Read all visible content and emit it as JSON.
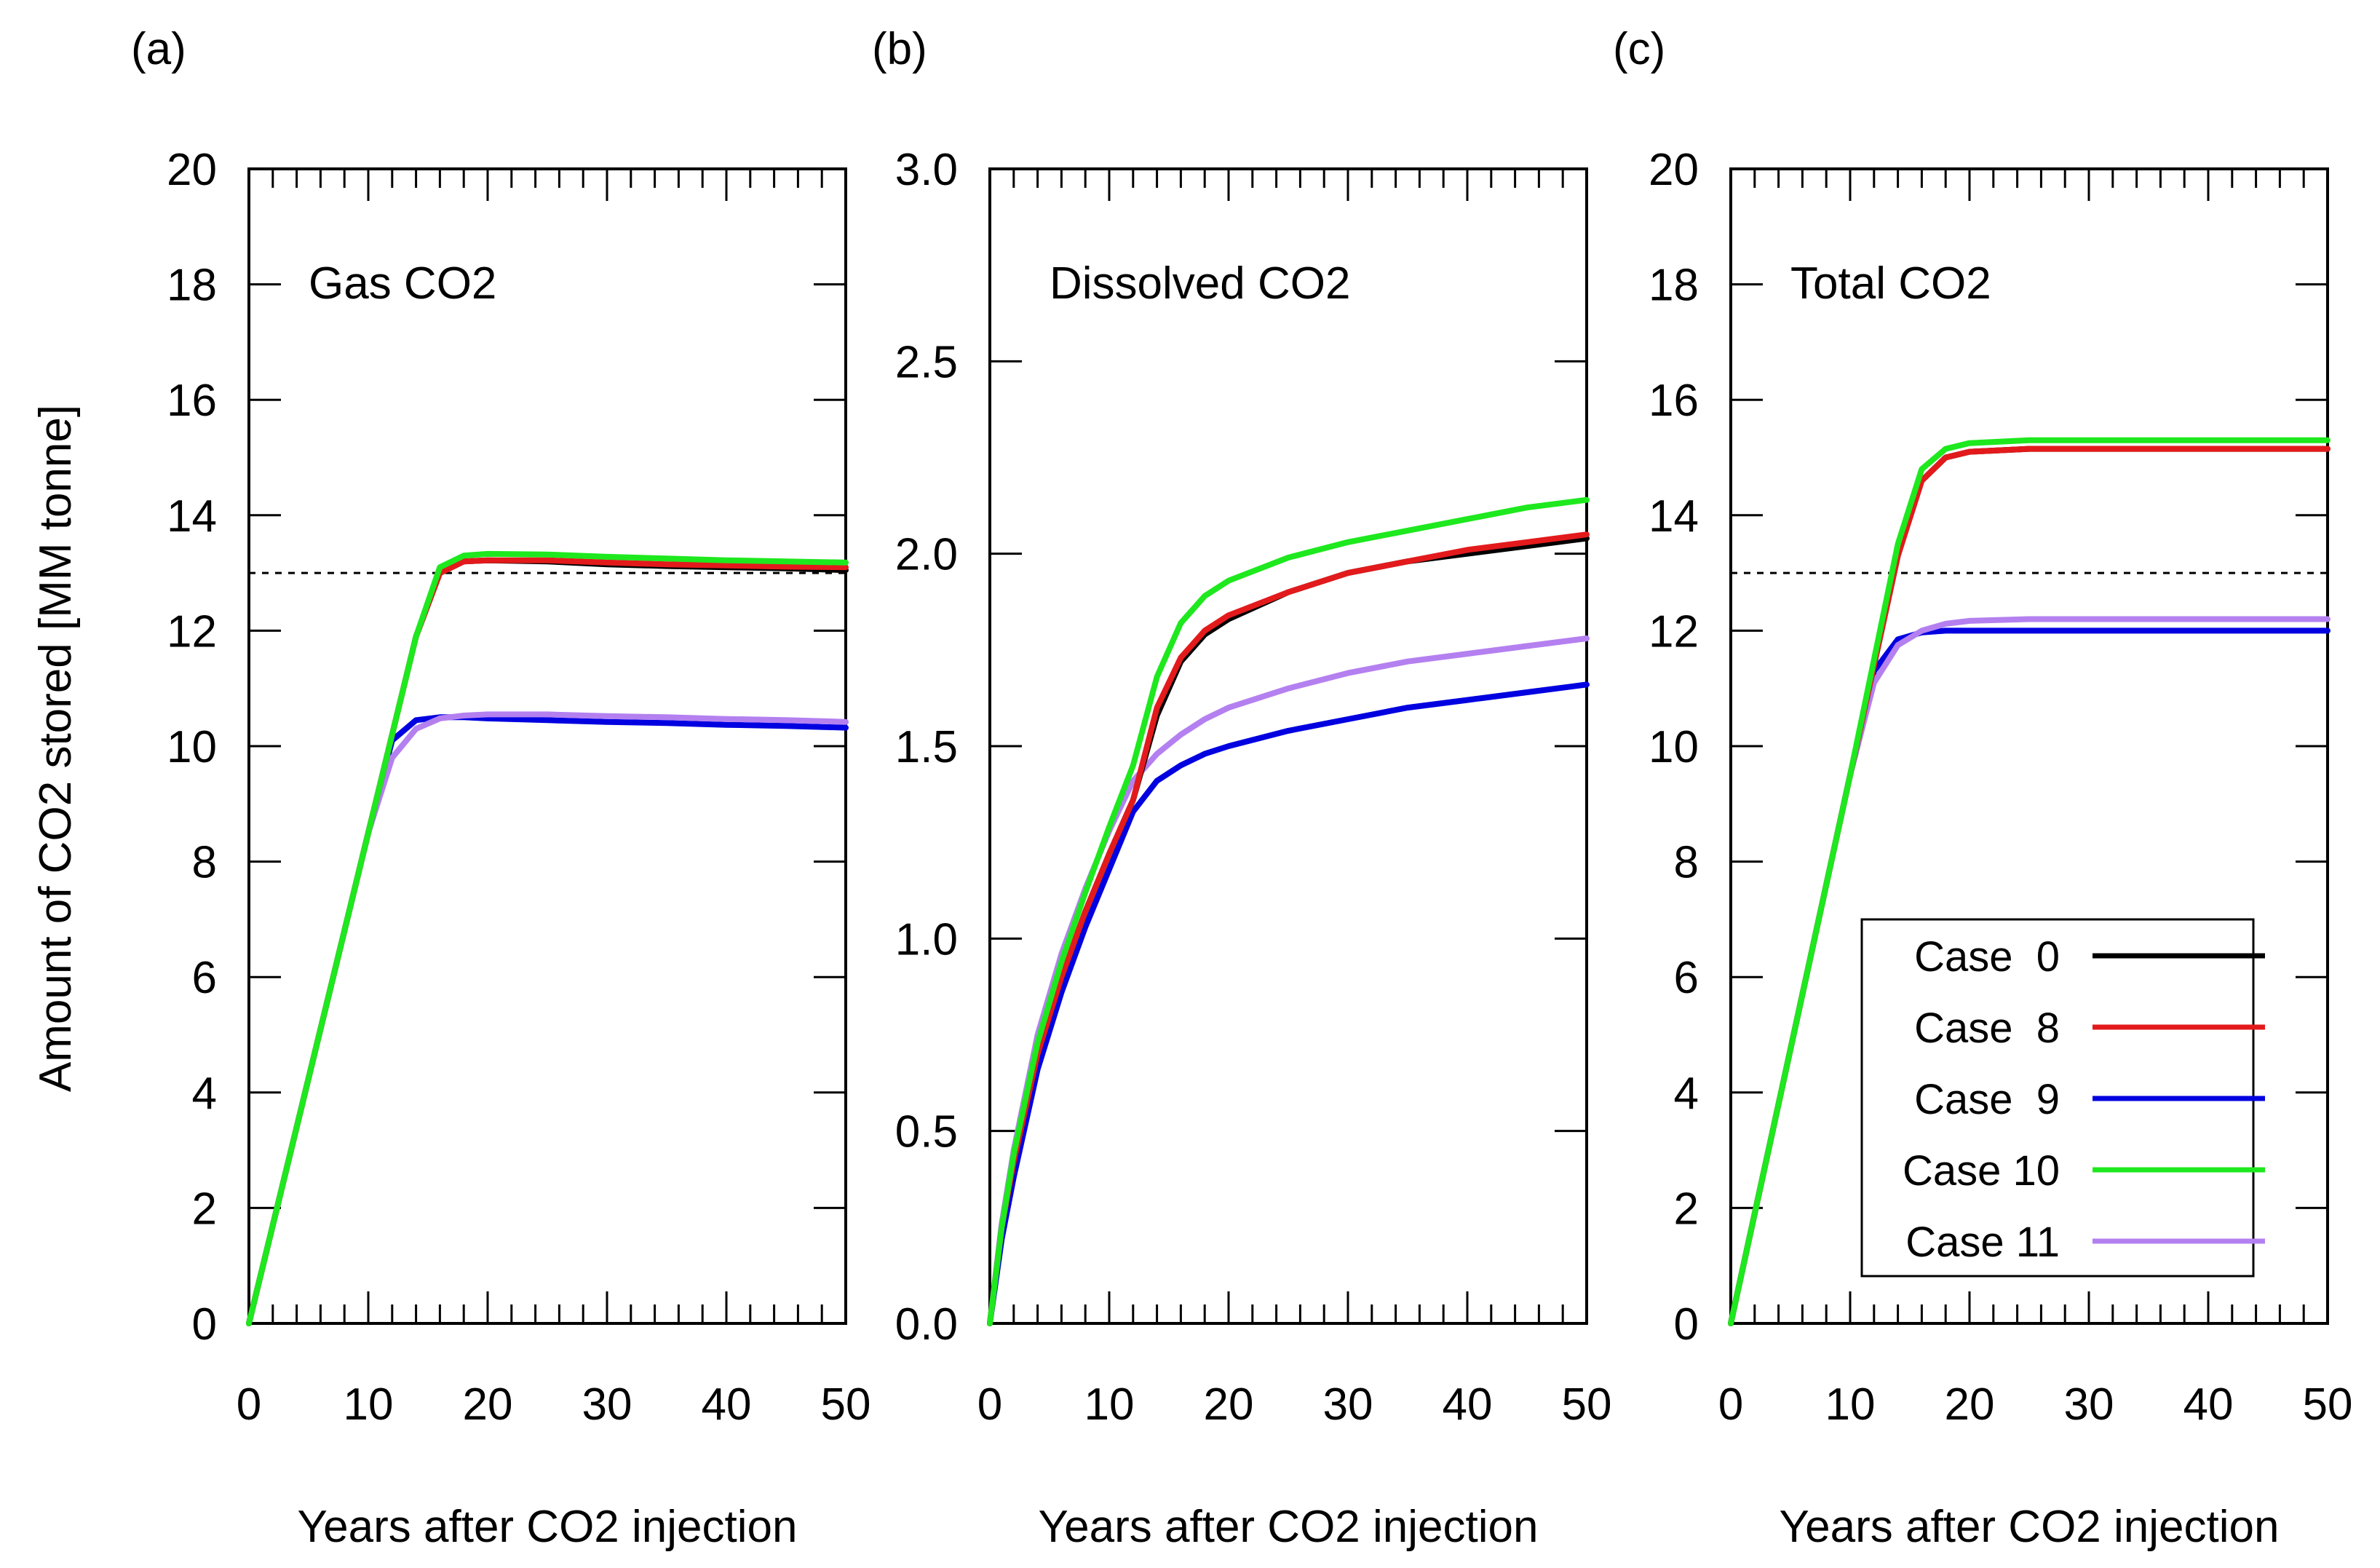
{
  "figure": {
    "ylabel": "Amount of CO2 stored [MM tonne]",
    "xlabel": "Years after CO2 injection",
    "reference_line": 13.0
  },
  "series_styles": [
    {
      "name": "Case  0",
      "color": "#000000"
    },
    {
      "name": "Case  8",
      "color": "#e31a1c"
    },
    {
      "name": "Case  9",
      "color": "#0000e0"
    },
    {
      "name": "Case 10",
      "color": "#1ee81e"
    },
    {
      "name": "Case 11",
      "color": "#b480f0"
    }
  ],
  "chart_data": [
    {
      "type": "line",
      "panel": "(a)",
      "title": "Gas CO2",
      "xlabel": "Years after CO2 injection",
      "xlim": [
        0,
        50
      ],
      "ylim": [
        0,
        20
      ],
      "xticks": [
        "0",
        "10",
        "20",
        "30",
        "40",
        "50"
      ],
      "yticks": [
        "0",
        "2",
        "4",
        "6",
        "8",
        "10",
        "12",
        "14",
        "16",
        "18",
        "20"
      ],
      "hline": 13.0,
      "x": [
        0,
        2,
        4,
        6,
        8,
        10,
        12,
        14,
        16,
        18,
        20,
        25,
        30,
        35,
        40,
        45,
        50
      ],
      "series": [
        {
          "name": "Case  0",
          "values": [
            0,
            1.7,
            3.4,
            5.1,
            6.8,
            8.5,
            10.2,
            11.9,
            13.0,
            13.2,
            13.22,
            13.2,
            13.15,
            13.12,
            13.1,
            13.08,
            13.05
          ]
        },
        {
          "name": "Case  8",
          "values": [
            0,
            1.7,
            3.4,
            5.1,
            6.8,
            8.5,
            10.2,
            11.9,
            13.0,
            13.2,
            13.22,
            13.22,
            13.18,
            13.15,
            13.13,
            13.11,
            13.1
          ]
        },
        {
          "name": "Case  9",
          "values": [
            0,
            1.7,
            3.4,
            5.1,
            6.8,
            8.5,
            10.1,
            10.45,
            10.5,
            10.5,
            10.48,
            10.45,
            10.42,
            10.4,
            10.37,
            10.35,
            10.32
          ]
        },
        {
          "name": "Case 10",
          "values": [
            0,
            1.7,
            3.4,
            5.1,
            6.8,
            8.5,
            10.2,
            11.9,
            13.1,
            13.3,
            13.33,
            13.32,
            13.28,
            13.25,
            13.22,
            13.2,
            13.18
          ]
        },
        {
          "name": "Case 11",
          "values": [
            0,
            1.7,
            3.4,
            5.1,
            6.8,
            8.5,
            9.8,
            10.3,
            10.48,
            10.53,
            10.55,
            10.55,
            10.52,
            10.5,
            10.47,
            10.45,
            10.42
          ]
        }
      ]
    },
    {
      "type": "line",
      "panel": "(b)",
      "title": "Dissolved CO2",
      "xlabel": "Years after CO2 injection",
      "xlim": [
        0,
        50
      ],
      "ylim": [
        0,
        3
      ],
      "xticks": [
        "0",
        "10",
        "20",
        "30",
        "40",
        "50"
      ],
      "yticks": [
        "0.0",
        "0.5",
        "1.0",
        "1.5",
        "2.0",
        "2.5",
        "3.0"
      ],
      "x": [
        0,
        1,
        2,
        4,
        6,
        8,
        10,
        12,
        14,
        16,
        18,
        20,
        25,
        30,
        35,
        40,
        45,
        50
      ],
      "series": [
        {
          "name": "Case  0",
          "values": [
            0,
            0.25,
            0.42,
            0.7,
            0.9,
            1.07,
            1.22,
            1.36,
            1.58,
            1.72,
            1.79,
            1.83,
            1.9,
            1.95,
            1.98,
            2.0,
            2.02,
            2.04
          ]
        },
        {
          "name": "Case  8",
          "values": [
            0,
            0.25,
            0.42,
            0.7,
            0.9,
            1.07,
            1.22,
            1.36,
            1.6,
            1.73,
            1.8,
            1.84,
            1.9,
            1.95,
            1.98,
            2.01,
            2.03,
            2.05
          ]
        },
        {
          "name": "Case  9",
          "values": [
            0,
            0.22,
            0.38,
            0.66,
            0.86,
            1.03,
            1.18,
            1.33,
            1.41,
            1.45,
            1.48,
            1.5,
            1.54,
            1.57,
            1.6,
            1.62,
            1.64,
            1.66
          ]
        },
        {
          "name": "Case 10",
          "values": [
            0,
            0.25,
            0.44,
            0.73,
            0.94,
            1.12,
            1.29,
            1.45,
            1.68,
            1.82,
            1.89,
            1.93,
            1.99,
            2.03,
            2.06,
            2.09,
            2.12,
            2.14
          ]
        },
        {
          "name": "Case 11",
          "values": [
            0,
            0.26,
            0.45,
            0.75,
            0.96,
            1.13,
            1.28,
            1.41,
            1.48,
            1.53,
            1.57,
            1.6,
            1.65,
            1.69,
            1.72,
            1.74,
            1.76,
            1.78
          ]
        }
      ]
    },
    {
      "type": "line",
      "panel": "(c)",
      "title": "Total CO2",
      "xlabel": "Years after CO2 injection",
      "xlim": [
        0,
        50
      ],
      "ylim": [
        0,
        20
      ],
      "xticks": [
        "0",
        "10",
        "20",
        "30",
        "40",
        "50"
      ],
      "yticks": [
        "0",
        "2",
        "4",
        "6",
        "8",
        "10",
        "12",
        "14",
        "16",
        "18",
        "20"
      ],
      "hline": 13.0,
      "legend_position": "bottom-right",
      "x": [
        0,
        2,
        4,
        6,
        8,
        10,
        12,
        14,
        16,
        18,
        20,
        25,
        30,
        35,
        40,
        45,
        50
      ],
      "series": [
        {
          "name": "Case  0",
          "values": [
            0,
            1.9,
            3.8,
            5.7,
            7.6,
            9.5,
            11.4,
            13.3,
            14.6,
            15.0,
            15.1,
            15.15,
            15.15,
            15.15,
            15.15,
            15.15,
            15.15
          ]
        },
        {
          "name": "Case  8",
          "values": [
            0,
            1.9,
            3.8,
            5.7,
            7.6,
            9.5,
            11.4,
            13.3,
            14.6,
            15.0,
            15.1,
            15.15,
            15.15,
            15.15,
            15.15,
            15.15,
            15.15
          ]
        },
        {
          "name": "Case  9",
          "values": [
            0,
            1.9,
            3.8,
            5.7,
            7.6,
            9.5,
            11.3,
            11.85,
            11.97,
            12.0,
            12.0,
            12.0,
            12.0,
            12.0,
            12.0,
            12.0,
            12.0
          ]
        },
        {
          "name": "Case 10",
          "values": [
            0,
            1.9,
            3.8,
            5.7,
            7.6,
            9.5,
            11.5,
            13.5,
            14.8,
            15.15,
            15.25,
            15.3,
            15.3,
            15.3,
            15.3,
            15.3,
            15.3
          ]
        },
        {
          "name": "Case 11",
          "values": [
            0,
            1.9,
            3.8,
            5.7,
            7.6,
            9.5,
            11.1,
            11.75,
            12.0,
            12.12,
            12.17,
            12.2,
            12.2,
            12.2,
            12.2,
            12.2,
            12.2
          ]
        }
      ]
    }
  ]
}
